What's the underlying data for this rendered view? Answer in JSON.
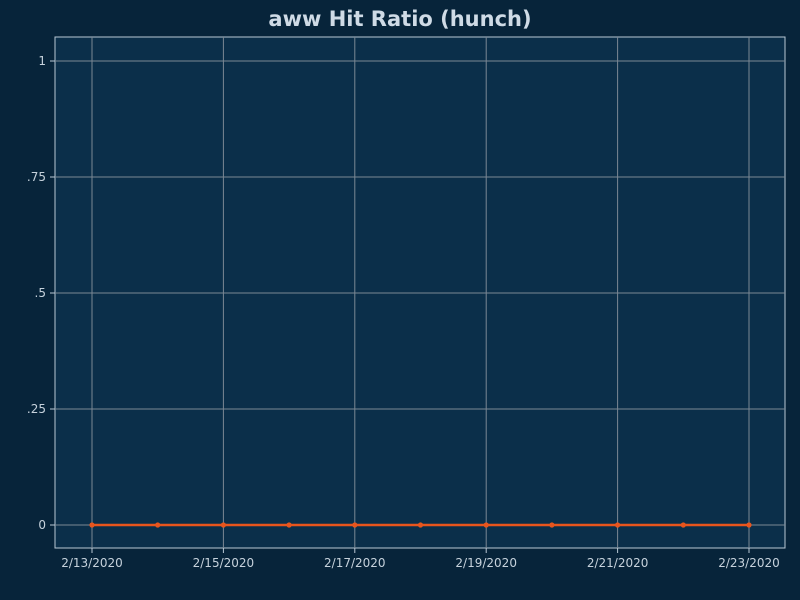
{
  "chart_data": {
    "type": "line",
    "title": "aww Hit Ratio (hunch)",
    "xlabel": "",
    "ylabel": "",
    "x": [
      "2/13/2020",
      "2/14/2020",
      "2/15/2020",
      "2/16/2020",
      "2/17/2020",
      "2/18/2020",
      "2/19/2020",
      "2/20/2020",
      "2/21/2020",
      "2/22/2020",
      "2/23/2020"
    ],
    "x_tick_labels": [
      "2/13/2020",
      "2/15/2020",
      "2/17/2020",
      "2/19/2020",
      "2/21/2020",
      "2/23/2020"
    ],
    "series": [
      {
        "values": [
          0,
          0,
          0,
          0,
          0,
          0,
          0,
          0,
          0,
          0,
          0
        ]
      }
    ],
    "ylim": [
      0,
      1
    ],
    "y_ticks": [
      0,
      0.25,
      0.5,
      0.75,
      1
    ],
    "y_tick_labels": [
      "0",
      ".25",
      ".5",
      ".75",
      "1"
    ],
    "grid": true,
    "legend": "none",
    "colors": {
      "background": "#07243a",
      "plot_background": "#0b2f4a",
      "grid": "#7b8894",
      "axis": "#b9c8d4",
      "line": "#e8551d",
      "title": "#cfdbe6",
      "tick_text": "#c6d2dc"
    }
  }
}
